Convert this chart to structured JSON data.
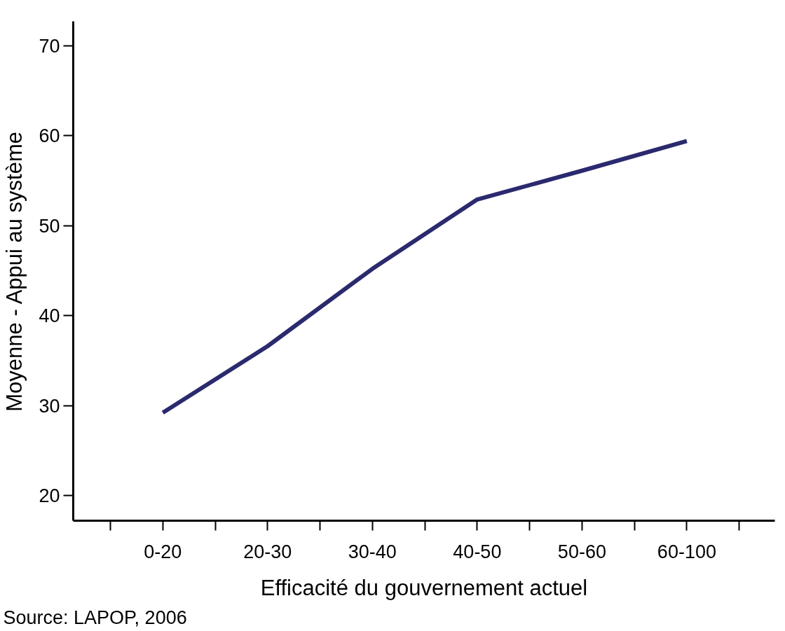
{
  "chart_data": {
    "type": "line",
    "xlabel": "Efficacité du gouvernement actuel",
    "ylabel": "Moyenne - Appui au système",
    "categories": [
      "0-20",
      "20-30",
      "30-40",
      "40-50",
      "50-60",
      "60-100"
    ],
    "series": [
      {
        "color": "#2b2a6e",
        "values": [
          29.2,
          36.6,
          45.2,
          52.9,
          56.1,
          59.4
        ]
      }
    ],
    "ylim": [
      17.2,
      72.7
    ],
    "yticks": [
      20,
      30,
      40,
      50,
      60,
      70
    ],
    "grid": false,
    "annotations": [
      "Source: LAPOP, 2006"
    ]
  }
}
